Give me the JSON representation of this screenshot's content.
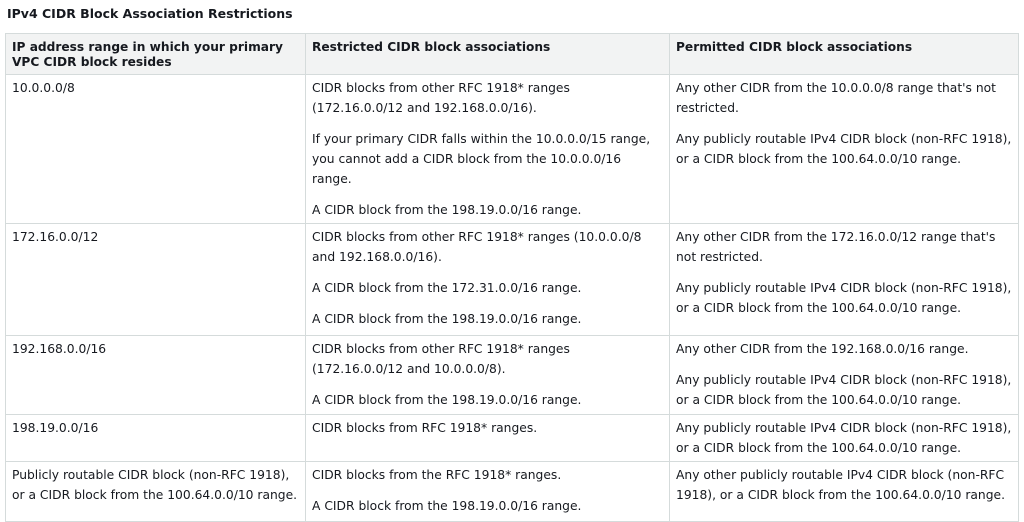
{
  "caption": "IPv4 CIDR Block Association Restrictions",
  "table": {
    "headers": [
      "IP address range in which your primary VPC CIDR block resides",
      "Restricted CIDR block associations",
      "Permitted CIDR block associations"
    ],
    "rows": [
      {
        "range": "10.0.0.0/8",
        "restricted": [
          "CIDR blocks from other RFC 1918* ranges (172.16.0.0/12 and 192.168.0.0/16).",
          "If your primary CIDR falls within the 10.0.0.0/15 range, you cannot add a CIDR block from the 10.0.0.0/16 range.",
          "A CIDR block from the 198.19.0.0/16 range."
        ],
        "permitted": [
          "Any other CIDR from the 10.0.0.0/8 range that's not restricted.",
          "Any publicly routable IPv4 CIDR block (non-RFC 1918), or a CIDR block from the 100.64.0.0/10 range."
        ]
      },
      {
        "range": "172.16.0.0/12",
        "restricted": [
          "CIDR blocks from other RFC 1918* ranges (10.0.0.0/8 and 192.168.0.0/16).",
          "A CIDR block from the 172.31.0.0/16 range.",
          "A CIDR block from the 198.19.0.0/16 range."
        ],
        "permitted": [
          "Any other CIDR from the 172.16.0.0/12 range that's not restricted.",
          "Any publicly routable IPv4 CIDR block (non-RFC 1918), or a CIDR block from the 100.64.0.0/10 range."
        ]
      },
      {
        "range": "192.168.0.0/16",
        "restricted": [
          "CIDR blocks from other RFC 1918* ranges (172.16.0.0/12 and 10.0.0.0/8).",
          "A CIDR block from the 198.19.0.0/16 range."
        ],
        "permitted": [
          "Any other CIDR from the 192.168.0.0/16 range.",
          "Any publicly routable IPv4 CIDR block (non-RFC 1918), or a CIDR block from the 100.64.0.0/10 range."
        ]
      },
      {
        "range": "198.19.0.0/16",
        "restricted": [
          "CIDR blocks from RFC 1918* ranges."
        ],
        "permitted": [
          "Any publicly routable IPv4 CIDR block (non-RFC 1918), or a CIDR block from the 100.64.0.0/10 range."
        ]
      },
      {
        "range": "Publicly routable CIDR block (non-RFC 1918), or a CIDR block from the 100.64.0.0/10 range.",
        "restricted": [
          "CIDR blocks from the RFC 1918* ranges.",
          "A CIDR block from the 198.19.0.0/16 range."
        ],
        "permitted": [
          "Any other publicly routable IPv4 CIDR block (non-RFC 1918), or a CIDR block from the 100.64.0.0/10 range."
        ]
      }
    ]
  }
}
